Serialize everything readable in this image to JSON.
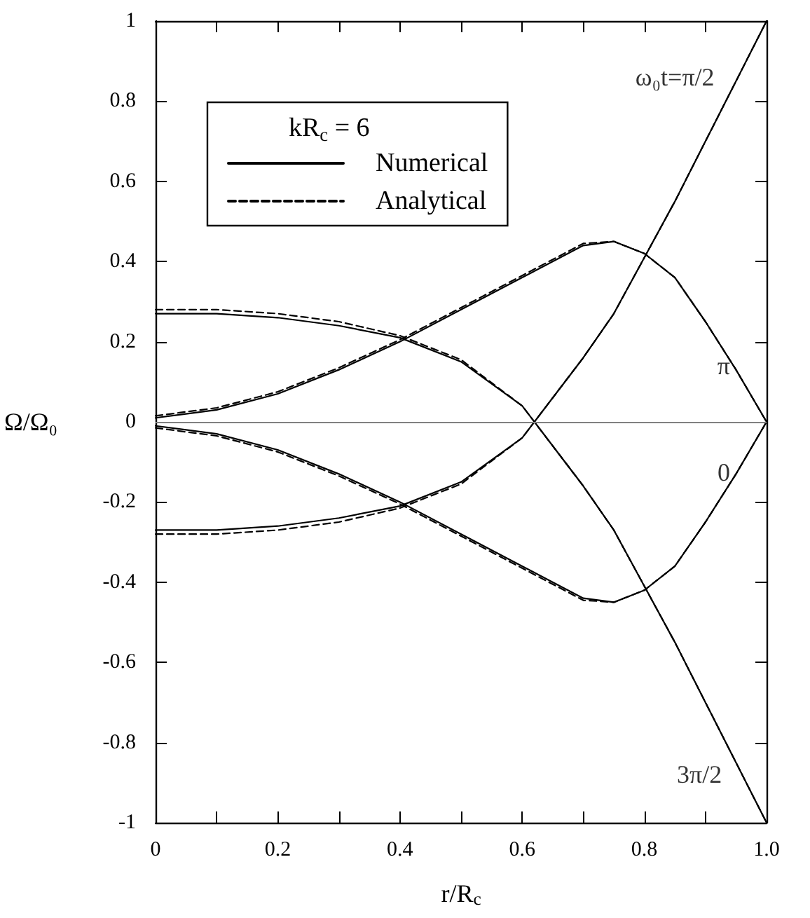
{
  "chart_data": {
    "type": "line",
    "xlabel": "r/R$_{c}$",
    "ylabel": "Ω/Ω₀",
    "legend_title": "kR$_{c}$ = 6",
    "x": [
      0,
      0.1,
      0.2,
      0.3,
      0.4,
      0.5,
      0.6,
      0.7,
      0.75,
      0.8,
      0.85,
      0.9,
      0.95,
      1
    ],
    "series": [
      {
        "name": "Numerical",
        "color": "#000000",
        "line_style": "solid",
        "values": [
          0.01,
          0.03,
          0.07,
          0.13,
          0.2,
          0.28,
          0.36,
          0.44,
          0.45,
          0.42,
          0.36,
          0.25,
          0.13,
          0
        ]
      },
      {
        "color": "#000000",
        "line_style": "solid",
        "values": [
          0.27,
          0.27,
          0.26,
          0.24,
          0.21,
          0.15,
          0.04,
          -0.16,
          -0.27,
          -0.41,
          -0.55,
          -0.7,
          -0.85,
          -1
        ]
      },
      {
        "color": "#000000",
        "line_style": "solid",
        "values": [
          -0.01,
          -0.03,
          -0.07,
          -0.13,
          -0.2,
          -0.28,
          -0.36,
          -0.44,
          -0.45,
          -0.42,
          -0.36,
          -0.25,
          -0.13,
          0
        ]
      },
      {
        "color": "#000000",
        "line_style": "solid",
        "values": [
          -0.27,
          -0.27,
          -0.26,
          -0.24,
          -0.21,
          -0.15,
          -0.04,
          0.16,
          0.27,
          0.41,
          0.55,
          0.7,
          0.85,
          1
        ]
      },
      {
        "name": "Analytical",
        "color": "#000000",
        "line_style": "dashed",
        "values": [
          0.015,
          0.035,
          0.075,
          0.135,
          0.205,
          0.285,
          0.365,
          0.445,
          0.45,
          0.42,
          0.36,
          0.25,
          0.13,
          0
        ]
      },
      {
        "color": "#000000",
        "line_style": "dashed",
        "values": [
          0.28,
          0.28,
          0.27,
          0.25,
          0.215,
          0.155,
          0.04,
          -0.16,
          -0.27,
          -0.41,
          -0.55,
          -0.7,
          -0.85,
          -1
        ]
      },
      {
        "color": "#000000",
        "line_style": "dashed",
        "values": [
          -0.015,
          -0.035,
          -0.075,
          -0.135,
          -0.205,
          -0.285,
          -0.365,
          -0.445,
          -0.45,
          -0.42,
          -0.36,
          -0.25,
          -0.13,
          0
        ]
      },
      {
        "color": "#000000",
        "line_style": "dashed",
        "values": [
          -0.28,
          -0.28,
          -0.27,
          -0.25,
          -0.215,
          -0.155,
          -0.04,
          0.16,
          0.27,
          0.41,
          0.55,
          0.7,
          0.85,
          1
        ]
      }
    ],
    "xlim": [
      0,
      1
    ],
    "ylim": [
      -1,
      1
    ],
    "xticks": [
      0,
      {
        "value": 0.1,
        "label": null
      },
      0.2,
      {
        "value": 0.3,
        "label": null
      },
      0.4,
      {
        "value": 0.5,
        "label": null
      },
      0.6,
      {
        "value": 0.7,
        "label": null
      },
      0.8,
      {
        "value": 0.9,
        "label": null
      },
      {
        "value": 1,
        "label": "1.0"
      }
    ],
    "yticks": [
      -1,
      -0.8,
      -0.6,
      -0.4,
      -0.2,
      0,
      0.2,
      0.4,
      0.6,
      0.8,
      1
    ],
    "ref_lines": [
      {
        "axis": "y",
        "value": 0,
        "color": "#808080",
        "line_style": "solid"
      }
    ],
    "annotations": [
      "ω₀t=π/2",
      "π",
      "0",
      "3π/2"
    ],
    "legend": "top left",
    "grid": false,
    "marker": "none"
  }
}
